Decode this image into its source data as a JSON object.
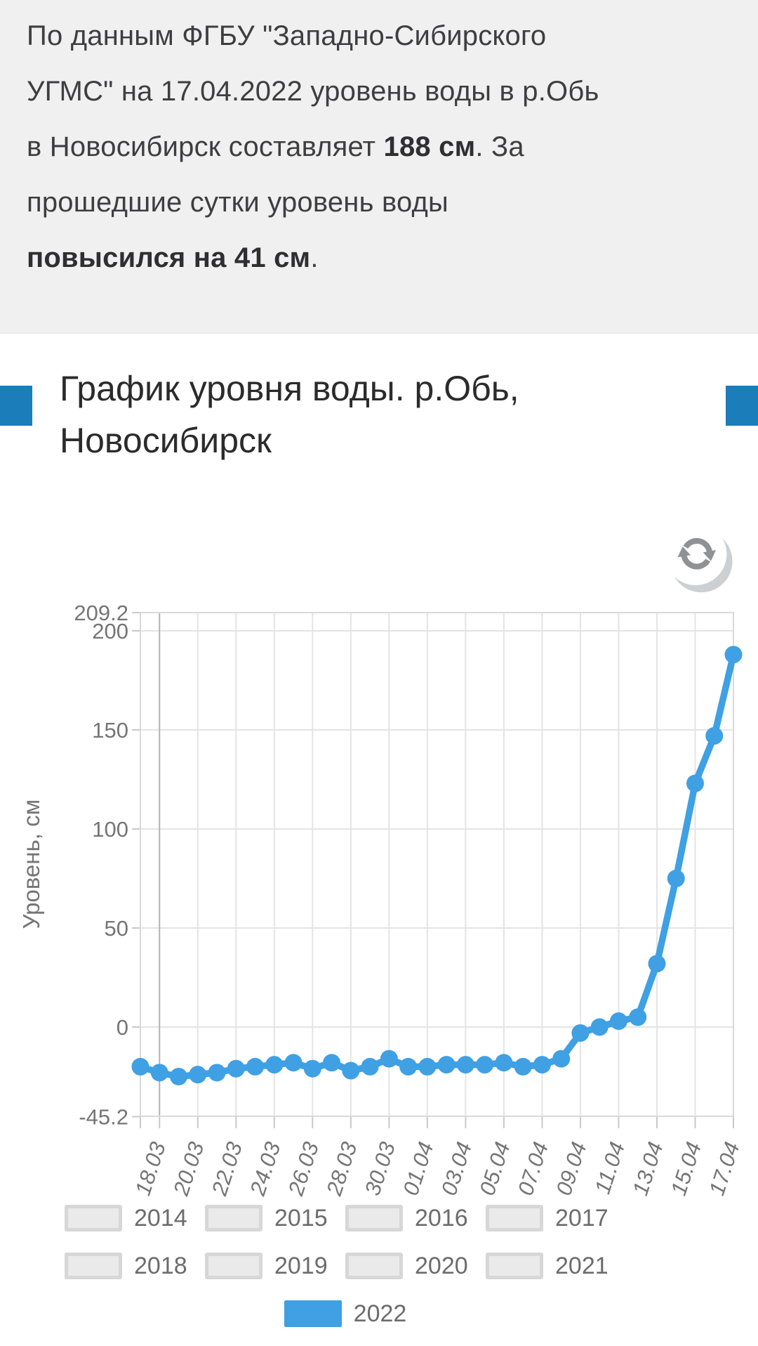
{
  "notice": {
    "segments": [
      {
        "text": "По данным ФГБУ \"Западно-Сибирского УГМС\" на 17.04.2022 уровень воды в р.Обь в Новосибирск составляет ",
        "bold": false
      },
      {
        "text": "188 см",
        "bold": true
      },
      {
        "text": ". За прошедшие сутки уровень воды ",
        "bold": false
      },
      {
        "text": "повысился на 41 см",
        "bold": true
      },
      {
        "text": ".",
        "bold": false
      }
    ]
  },
  "section": {
    "title": "График уровня воды. р.Обь, Новосибирск"
  },
  "chart_data": {
    "type": "line",
    "title": "График уровня воды. р.Обь, Новосибирск",
    "xlabel": "",
    "ylabel": "Уровень, см",
    "x": [
      "17.03",
      "18.03",
      "19.03",
      "20.03",
      "21.03",
      "22.03",
      "23.03",
      "24.03",
      "25.03",
      "26.03",
      "27.03",
      "28.03",
      "29.03",
      "30.03",
      "31.03",
      "01.04",
      "02.04",
      "03.04",
      "04.04",
      "05.04",
      "06.04",
      "07.04",
      "08.04",
      "09.04",
      "10.04",
      "11.04",
      "12.04",
      "13.04",
      "14.04",
      "15.04",
      "16.04",
      "17.04"
    ],
    "series": [
      {
        "name": "2022",
        "color": "#3fa0e4",
        "values": [
          -20,
          -23,
          -25,
          -24,
          -23,
          -21,
          -20,
          -19,
          -18,
          -21,
          -18,
          -22,
          -20,
          -16,
          -20,
          -20,
          -19,
          -19,
          -19,
          -18,
          -20,
          -19,
          -16,
          -3,
          0,
          3,
          5,
          32,
          75,
          123,
          147,
          188
        ]
      }
    ],
    "ylim": [
      -45.2,
      209.2
    ],
    "yticks": [
      209.2,
      200,
      150,
      100,
      50,
      0,
      -45.2
    ],
    "xticks": [
      "18.03",
      "20.03",
      "22.03",
      "24.03",
      "26.03",
      "28.03",
      "30.03",
      "01.04",
      "03.04",
      "05.04",
      "07.04",
      "09.04",
      "11.04",
      "13.04",
      "15.04",
      "17.04"
    ],
    "grid": true,
    "legend_position": "bottom",
    "marker": "circle"
  },
  "legend": {
    "rows": [
      {
        "items": [
          "2014",
          "2015",
          "2016",
          "2017"
        ]
      },
      {
        "items": [
          "2018",
          "2019",
          "2020",
          "2021"
        ]
      },
      {
        "items": [
          "2022"
        ]
      }
    ],
    "active_year": "2022"
  },
  "icons": {
    "refresh": "refresh-icon"
  },
  "colors": {
    "accent_blue": "#3fa0e4",
    "title_marker": "#1b7db9",
    "notice_bg": "#f0f0f1",
    "grid_line": "#e4e4e4",
    "grid_line_first": "#b3b3b3",
    "plot_border": "#d9d9d9",
    "tick_stub": "#c9c9c9",
    "axis_text": "#757575"
  }
}
